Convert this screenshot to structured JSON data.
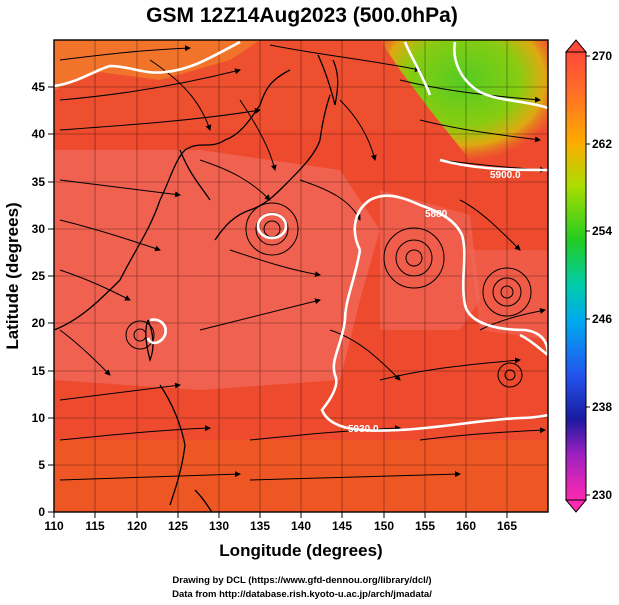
{
  "title": "GSM 12Z14Aug2023 (500.0hPa)",
  "xlabel": "Longitude (degrees)",
  "ylabel": "Latitude  (degrees)",
  "x_ticks": [
    "110",
    "115",
    "120",
    "125",
    "130",
    "135",
    "140",
    "145",
    "150",
    "155",
    "160",
    "165"
  ],
  "y_ticks": [
    "0",
    "5",
    "10",
    "15",
    "20",
    "25",
    "30",
    "35",
    "40",
    "45"
  ],
  "colorbar_ticks": [
    "270",
    "262",
    "254",
    "246",
    "238",
    "230"
  ],
  "contour_labels": [
    "5900.0",
    "5880",
    "5930.0"
  ],
  "credits": {
    "line1": "Drawing by DCL (https://www.gfd-dennou.org/library/dcl/)",
    "line2": "Data from http://database.rish.kyoto-u.ac.jp/arch/jmadata/"
  },
  "colors": {
    "warm_fill": "#ee5533",
    "hot_fill": "#f06a5a",
    "cool_fill": "#66cc22",
    "contour": "#ffffff",
    "streamline": "#000000"
  },
  "chart_data": {
    "type": "heatmap",
    "title": "GSM 12Z14Aug2023 (500.0hPa)",
    "xlabel": "Longitude (degrees)",
    "ylabel": "Latitude  (degrees)",
    "xlim": [
      110,
      170
    ],
    "ylim": [
      0,
      50
    ],
    "colorbar_range": [
      230,
      270
    ],
    "colorbar_ticks": [
      270,
      262,
      254,
      246,
      238,
      230
    ],
    "contour_values": [
      "5900.0",
      "5880",
      "5930.0"
    ],
    "overlay": "streamlines"
  }
}
